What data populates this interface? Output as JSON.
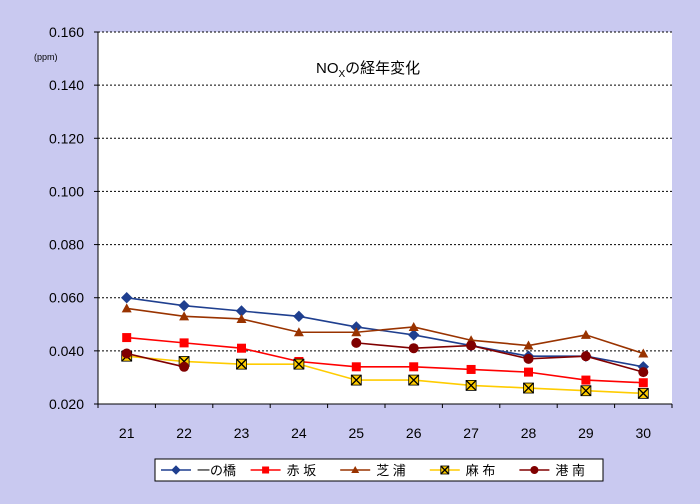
{
  "chart_data": {
    "type": "line",
    "title_main": "NO",
    "title_sub": "X",
    "title_rest": "の経年変化",
    "unit": "(ppm)",
    "categories": [
      "21",
      "22",
      "23",
      "24",
      "25",
      "26",
      "27",
      "28",
      "29",
      "30"
    ],
    "y_ticks": [
      "0.020",
      "0.040",
      "0.060",
      "0.080",
      "0.100",
      "0.120",
      "0.140",
      "0.160"
    ],
    "ylim": [
      0.02,
      0.16
    ],
    "grid": "horizontal-dotted",
    "legend_position": "bottom",
    "series": [
      {
        "name": "一の橋",
        "color": "#1f3f8f",
        "marker": "diamond",
        "values": [
          0.06,
          0.057,
          0.055,
          0.053,
          0.049,
          0.046,
          0.042,
          0.038,
          0.038,
          0.034
        ]
      },
      {
        "name": "赤 坂",
        "color": "#ff0000",
        "marker": "square",
        "values": [
          0.045,
          0.043,
          0.041,
          0.036,
          0.034,
          0.034,
          0.033,
          0.032,
          0.029,
          0.028
        ]
      },
      {
        "name": "芝 浦",
        "color": "#993300",
        "marker": "triangle",
        "values": [
          0.056,
          0.053,
          0.052,
          0.047,
          0.047,
          0.049,
          0.044,
          0.042,
          0.046,
          0.039
        ]
      },
      {
        "name": "麻 布",
        "color": "#ffcc00",
        "marker": "x",
        "values": [
          0.038,
          0.036,
          0.035,
          0.035,
          0.029,
          0.029,
          0.027,
          0.026,
          0.025,
          0.024
        ]
      },
      {
        "name": "港 南",
        "color": "#800000",
        "marker": "circle",
        "values": [
          0.039,
          0.034,
          null,
          null,
          0.043,
          0.041,
          0.042,
          0.037,
          0.038,
          0.032
        ]
      }
    ]
  }
}
